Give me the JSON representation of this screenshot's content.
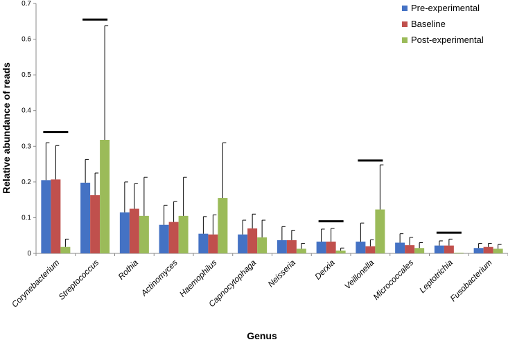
{
  "chart_data": {
    "type": "bar",
    "title": "",
    "xlabel": "Genus",
    "ylabel": "Relative abundance of reads",
    "ylim": [
      0,
      0.7
    ],
    "yticks": [
      "0",
      "0.1",
      "0.2",
      "0.3",
      "0.4",
      "0.5",
      "0.6",
      "0.7"
    ],
    "legend_position": "top-right",
    "categories": [
      "Corynebacterium",
      "Streptococcus",
      "Rothia",
      "Actinomyces",
      "Haemophilus",
      "Capnocytophaga",
      "Neisseria",
      "Derxia",
      "Veillonella",
      "Micrococcales",
      "Leptotrichia",
      "Fusobacterium"
    ],
    "series": [
      {
        "name": "Pre-experimental",
        "color": "#4472C4",
        "values": [
          0.205,
          0.198,
          0.115,
          0.08,
          0.055,
          0.053,
          0.037,
          0.033,
          0.033,
          0.03,
          0.022,
          0.015
        ],
        "errors": [
          0.105,
          0.065,
          0.085,
          0.055,
          0.048,
          0.04,
          0.038,
          0.035,
          0.052,
          0.025,
          0.013,
          0.013
        ]
      },
      {
        "name": "Baseline",
        "color": "#C0504D",
        "values": [
          0.207,
          0.163,
          0.125,
          0.088,
          0.053,
          0.07,
          0.037,
          0.033,
          0.02,
          0.023,
          0.022,
          0.018
        ],
        "errors": [
          0.095,
          0.062,
          0.07,
          0.057,
          0.055,
          0.04,
          0.028,
          0.037,
          0.018,
          0.022,
          0.018,
          0.01
        ]
      },
      {
        "name": "Post-experimental",
        "color": "#9BBB59",
        "values": [
          0.018,
          0.318,
          0.105,
          0.105,
          0.155,
          0.045,
          0.013,
          0.008,
          0.123,
          0.015,
          0.002,
          0.013
        ],
        "errors": [
          0.022,
          0.32,
          0.108,
          0.108,
          0.155,
          0.048,
          0.015,
          0.007,
          0.125,
          0.015,
          0.0,
          0.012
        ]
      }
    ],
    "significance_marks": [
      {
        "category": "Corynebacterium",
        "value": 0.34
      },
      {
        "category": "Streptococcus",
        "value": 0.655
      },
      {
        "category": "Derxia",
        "value": 0.09
      },
      {
        "category": "Veillonella",
        "value": 0.26
      },
      {
        "category": "Leptotrichia",
        "value": 0.058
      }
    ]
  }
}
